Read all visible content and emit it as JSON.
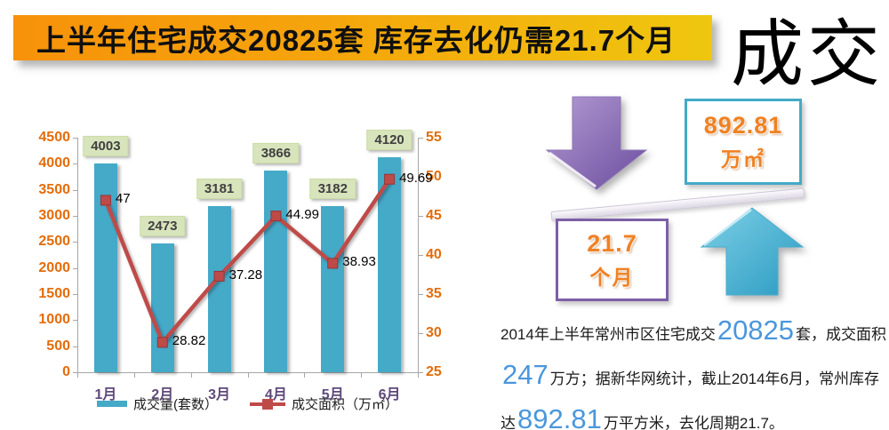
{
  "header": {
    "banner_title": "上半年住宅成交20825套 库存去化仍需21.7个月",
    "watermark": "成交"
  },
  "chart_data": {
    "type": "combo-bar-line",
    "title": "",
    "categories": [
      "1月",
      "2月",
      "3月",
      "4月",
      "5月",
      "6月"
    ],
    "series": [
      {
        "name": "成交量(套数）",
        "type": "bar",
        "axis": "left",
        "color": "#45A9C8",
        "values": [
          4003,
          2473,
          3181,
          3866,
          3182,
          4120
        ]
      },
      {
        "name": "成交面积（万㎡）",
        "type": "line",
        "axis": "right",
        "color": "#BE4B48",
        "marker": "square",
        "values": [
          47,
          28.82,
          37.28,
          44.99,
          38.93,
          49.69
        ]
      }
    ],
    "left_axis": {
      "min": 0,
      "max": 4500,
      "step": 500,
      "label_color": "#E36C0A"
    },
    "right_axis": {
      "min": 25,
      "max": 55,
      "step": 5,
      "label_color": "#E36C0A"
    },
    "category_label_color": "#5F497A",
    "grid": false,
    "legend_position": "bottom"
  },
  "infographic": {
    "down_arrow": {
      "color_light": "#B49BD3",
      "color_dark": "#6B4D9E"
    },
    "up_arrow": {
      "color_light": "#7ED0E6",
      "color_dark": "#2B9BC2"
    },
    "area_box": {
      "value": "892.81",
      "unit": "万㎡",
      "border_color": "#44AAC7"
    },
    "period_box": {
      "value": "21.7",
      "unit": "个月",
      "border_color": "#7D5FA6"
    }
  },
  "paragraph": {
    "l1a": "2014年上半年常州市区住宅成交",
    "l1num": "20825",
    "l1b": "套，成交面积",
    "l2num": "247",
    "l2b": "万方；据新华网统计，截止2014年6月，常州库存",
    "l3a": "达",
    "l3num": "892.81",
    "l3b": "万平方米，去化周期21.7。"
  },
  "colors": {
    "banner_gradient_left": "#F7920A",
    "banner_gradient_mid": "#F5A50C",
    "banner_gradient_right": "#EFC70F",
    "number_blue": "#4A97DC",
    "info_orange": "#F08122",
    "bar_label_bg": "#D8E4BC",
    "beam_light": "#FBFAFD",
    "beam_dark": "#DDD8E4"
  }
}
